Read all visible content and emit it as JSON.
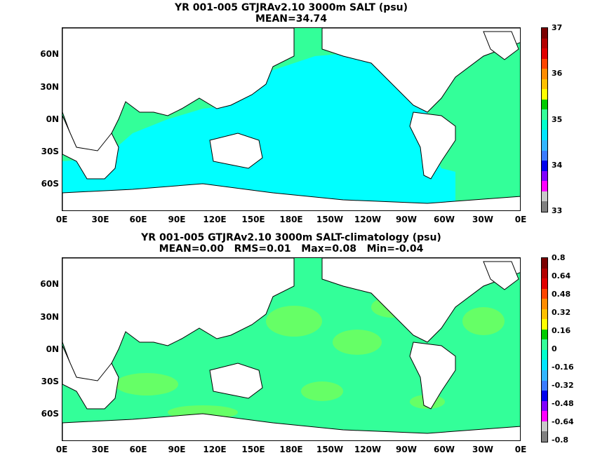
{
  "panels": [
    {
      "title": "YR 001-005 GTJRAv2.10 3000m SALT (psu)",
      "subtitle": "MEAN=34.74",
      "colorbar": {
        "labels": [
          "37",
          "36",
          "35",
          "34",
          "33"
        ],
        "colors": [
          "#7a0000",
          "#b30000",
          "#e00000",
          "#ff4500",
          "#ff8c00",
          "#ffc000",
          "#ffff00",
          "#00cc00",
          "#33ff99",
          "#00ffcc",
          "#00e5ff",
          "#33b5ff",
          "#3a7bff",
          "#0000ee",
          "#8000ff",
          "#ff00ff",
          "#c8c8c8",
          "#808080"
        ]
      }
    },
    {
      "title": "YR 001-005 GTJRAv2.10 3000m SALT-climatology (psu)",
      "subtitle": "MEAN=0.00   RMS=0.01   Max=0.08   Min=-0.04",
      "colorbar": {
        "labels": [
          "0.8",
          "0.64",
          "0.48",
          "0.32",
          "0.16",
          "0",
          "-0.16",
          "-0.32",
          "-0.48",
          "-0.64",
          "-0.8"
        ],
        "colors": [
          "#7a0000",
          "#b30000",
          "#e00000",
          "#ff4500",
          "#ff8c00",
          "#ffc000",
          "#ffff00",
          "#00cc00",
          "#33ff99",
          "#00ffcc",
          "#00e5ff",
          "#33b5ff",
          "#3a7bff",
          "#0000ee",
          "#8000ff",
          "#ff00ff",
          "#c8c8c8",
          "#808080"
        ]
      }
    }
  ],
  "axes": {
    "lat_labels": [
      "60N",
      "30N",
      "0N",
      "30S",
      "60S"
    ],
    "lon_labels": [
      "0E",
      "30E",
      "60E",
      "90E",
      "120E",
      "150E",
      "180E",
      "150W",
      "120W",
      "90W",
      "60W",
      "30W",
      "0E"
    ]
  },
  "colors": {
    "ocean_mean": "#00ffff",
    "ocean_high": "#33ff99",
    "ocean_anom_pos": "#66ff66",
    "ocean_anom_zero": "#33ff99",
    "land": "#ffffff",
    "coast": "#000000"
  }
}
